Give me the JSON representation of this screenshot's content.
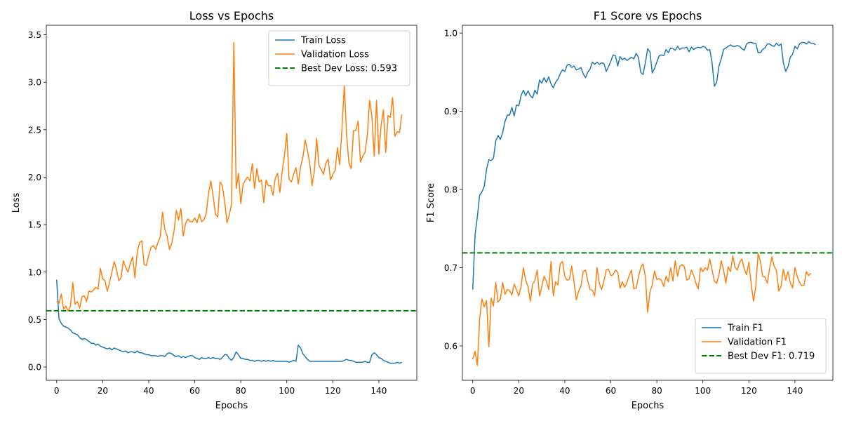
{
  "chart_data": [
    {
      "type": "line",
      "title": "Loss vs Epochs",
      "xlabel": "Epochs",
      "ylabel": "Loss",
      "xlim": [
        -4.5,
        156.5
      ],
      "ylim": [
        -0.14,
        3.6
      ],
      "xticks": [
        0,
        20,
        40,
        60,
        80,
        100,
        120,
        140
      ],
      "xtick_labels": [
        "0",
        "20",
        "40",
        "60",
        "80",
        "100",
        "120",
        "140"
      ],
      "yticks": [
        0.0,
        0.5,
        1.0,
        1.5,
        2.0,
        2.5,
        3.0,
        3.5
      ],
      "ytick_labels": [
        "0.0",
        "0.5",
        "1.0",
        "1.5",
        "2.0",
        "2.5",
        "3.0",
        "3.5"
      ],
      "legend_position": "top-right",
      "grid": false,
      "series": [
        {
          "name": "Train Loss",
          "color": "#1f77b4",
          "values": [
            0.92,
            0.51,
            0.46,
            0.43,
            0.42,
            0.41,
            0.39,
            0.36,
            0.35,
            0.34,
            0.31,
            0.29,
            0.3,
            0.29,
            0.27,
            0.25,
            0.25,
            0.23,
            0.24,
            0.22,
            0.21,
            0.2,
            0.19,
            0.2,
            0.18,
            0.2,
            0.19,
            0.18,
            0.17,
            0.16,
            0.17,
            0.15,
            0.16,
            0.16,
            0.15,
            0.17,
            0.15,
            0.15,
            0.14,
            0.13,
            0.13,
            0.12,
            0.12,
            0.12,
            0.11,
            0.12,
            0.12,
            0.11,
            0.14,
            0.15,
            0.14,
            0.12,
            0.11,
            0.12,
            0.1,
            0.11,
            0.1,
            0.11,
            0.12,
            0.12,
            0.1,
            0.09,
            0.08,
            0.1,
            0.09,
            0.09,
            0.1,
            0.09,
            0.1,
            0.09,
            0.09,
            0.08,
            0.1,
            0.13,
            0.13,
            0.09,
            0.07,
            0.1,
            0.16,
            0.13,
            0.09,
            0.09,
            0.08,
            0.08,
            0.07,
            0.07,
            0.06,
            0.07,
            0.07,
            0.06,
            0.07,
            0.06,
            0.07,
            0.06,
            0.07,
            0.06,
            0.06,
            0.06,
            0.06,
            0.06,
            0.06,
            0.05,
            0.06,
            0.07,
            0.06,
            0.23,
            0.2,
            0.14,
            0.11,
            0.08,
            0.06,
            0.06,
            0.06,
            0.06,
            0.06,
            0.06,
            0.06,
            0.06,
            0.06,
            0.06,
            0.06,
            0.06,
            0.06,
            0.06,
            0.06,
            0.07,
            0.08,
            0.07,
            0.07,
            0.06,
            0.05,
            0.05,
            0.05,
            0.05,
            0.06,
            0.05,
            0.05,
            0.13,
            0.15,
            0.13,
            0.1,
            0.09,
            0.07,
            0.06,
            0.05,
            0.04,
            0.04,
            0.04,
            0.05,
            0.04,
            0.05
          ]
        },
        {
          "name": "Validation Loss",
          "color": "#ff7f0e",
          "values": [
            0.69,
            0.67,
            0.77,
            0.61,
            0.64,
            0.59,
            0.64,
            0.89,
            0.66,
            0.69,
            0.62,
            0.74,
            0.75,
            0.69,
            0.8,
            0.79,
            0.81,
            0.84,
            0.82,
            1.04,
            0.93,
            0.91,
            0.8,
            0.89,
            1.0,
            1.11,
            1.03,
            0.91,
            0.94,
            1.12,
            1.05,
            1.0,
            1.09,
            1.16,
            0.94,
            1.21,
            1.31,
            1.33,
            1.08,
            1.07,
            1.18,
            1.26,
            1.28,
            1.24,
            1.31,
            1.37,
            1.63,
            1.45,
            1.38,
            1.24,
            1.3,
            1.43,
            1.65,
            1.55,
            1.67,
            1.38,
            1.51,
            1.56,
            1.53,
            1.53,
            1.57,
            1.52,
            1.61,
            1.53,
            1.55,
            1.62,
            1.83,
            1.96,
            1.8,
            1.61,
            1.58,
            1.95,
            1.91,
            1.74,
            1.52,
            1.6,
            1.72,
            3.42,
            1.88,
            2.04,
            1.72,
            1.92,
            1.97,
            2.0,
            1.96,
            2.14,
            1.88,
            2.09,
            1.95,
            1.97,
            1.73,
            1.97,
            1.91,
            1.91,
            1.81,
            1.99,
            2.04,
            1.84,
            2.06,
            2.23,
            2.46,
            1.98,
            1.95,
            2.03,
            2.1,
            1.93,
            2.11,
            2.21,
            2.39,
            2.28,
            2.14,
            1.91,
            2.07,
            2.41,
            2.12,
            2.08,
            2.03,
            2.15,
            2.19,
            1.97,
            2.03,
            2.07,
            2.31,
            2.13,
            2.52,
            2.97,
            2.44,
            2.15,
            2.09,
            2.49,
            2.49,
            2.59,
            2.16,
            2.22,
            2.26,
            2.44,
            2.81,
            2.64,
            2.22,
            2.81,
            2.24,
            2.55,
            2.71,
            2.26,
            2.65,
            2.63,
            2.84,
            2.43,
            2.48,
            2.47,
            2.66
          ]
        },
        {
          "name": "Best Dev Loss: 0.593",
          "color": "#008000",
          "dashed": true,
          "hline": 0.593
        }
      ]
    },
    {
      "type": "line",
      "title": "F1 Score vs Epochs",
      "xlabel": "Epochs",
      "ylabel": "F1 Score",
      "xlim": [
        -4.5,
        156.5
      ],
      "ylim": [
        0.556,
        1.01
      ],
      "xticks": [
        0,
        20,
        40,
        60,
        80,
        100,
        120,
        140
      ],
      "xtick_labels": [
        "0",
        "20",
        "40",
        "60",
        "80",
        "100",
        "120",
        "140"
      ],
      "yticks": [
        0.6,
        0.7,
        0.8,
        0.9,
        1.0
      ],
      "ytick_labels": [
        "0.6",
        "0.7",
        "0.8",
        "0.9",
        "1.0"
      ],
      "legend_position": "bottom-right",
      "grid": false,
      "series": [
        {
          "name": "Train F1",
          "color": "#1f77b4",
          "values": [
            0.672,
            0.742,
            0.765,
            0.793,
            0.797,
            0.804,
            0.826,
            0.838,
            0.837,
            0.84,
            0.862,
            0.869,
            0.864,
            0.873,
            0.887,
            0.895,
            0.895,
            0.905,
            0.894,
            0.908,
            0.907,
            0.92,
            0.927,
            0.92,
            0.926,
            0.92,
            0.917,
            0.927,
            0.922,
            0.94,
            0.936,
            0.943,
            0.937,
            0.944,
            0.935,
            0.93,
            0.937,
            0.941,
            0.948,
            0.953,
            0.951,
            0.959,
            0.96,
            0.956,
            0.958,
            0.953,
            0.954,
            0.956,
            0.948,
            0.943,
            0.95,
            0.954,
            0.963,
            0.96,
            0.963,
            0.96,
            0.962,
            0.961,
            0.951,
            0.957,
            0.964,
            0.972,
            0.971,
            0.958,
            0.97,
            0.966,
            0.968,
            0.965,
            0.967,
            0.969,
            0.967,
            0.974,
            0.969,
            0.95,
            0.947,
            0.962,
            0.98,
            0.976,
            0.949,
            0.955,
            0.963,
            0.971,
            0.972,
            0.971,
            0.979,
            0.975,
            0.981,
            0.98,
            0.978,
            0.983,
            0.979,
            0.981,
            0.981,
            0.982,
            0.976,
            0.982,
            0.979,
            0.981,
            0.982,
            0.981,
            0.983,
            0.982,
            0.978,
            0.979,
            0.962,
            0.932,
            0.937,
            0.958,
            0.967,
            0.979,
            0.981,
            0.983,
            0.985,
            0.983,
            0.983,
            0.984,
            0.983,
            0.98,
            0.978,
            0.986,
            0.988,
            0.988,
            0.987,
            0.987,
            0.975,
            0.975,
            0.979,
            0.981,
            0.986,
            0.986,
            0.984,
            0.983,
            0.987,
            0.984,
            0.986,
            0.962,
            0.951,
            0.957,
            0.969,
            0.973,
            0.983,
            0.98,
            0.986,
            0.988,
            0.988,
            0.986,
            0.989,
            0.987,
            0.987,
            0.985
          ]
        },
        {
          "name": "Validation F1",
          "color": "#ff7f0e",
          "values": [
            0.583,
            0.593,
            0.575,
            0.635,
            0.66,
            0.65,
            0.658,
            0.599,
            0.661,
            0.651,
            0.681,
            0.656,
            0.66,
            0.681,
            0.666,
            0.672,
            0.671,
            0.665,
            0.679,
            0.672,
            0.664,
            0.676,
            0.7,
            0.684,
            0.676,
            0.657,
            0.679,
            0.684,
            0.697,
            0.664,
            0.676,
            0.689,
            0.683,
            0.672,
            0.708,
            0.664,
            0.682,
            0.678,
            0.705,
            0.708,
            0.689,
            0.684,
            0.685,
            0.702,
            0.682,
            0.659,
            0.67,
            0.676,
            0.695,
            0.697,
            0.683,
            0.672,
            0.671,
            0.664,
            0.7,
            0.68,
            0.672,
            0.683,
            0.697,
            0.698,
            0.69,
            0.691,
            0.697,
            0.694,
            0.674,
            0.682,
            0.675,
            0.681,
            0.69,
            0.697,
            0.673,
            0.674,
            0.688,
            0.7,
            0.705,
            0.689,
            0.643,
            0.669,
            0.678,
            0.696,
            0.685,
            0.686,
            0.684,
            0.676,
            0.689,
            0.682,
            0.7,
            0.683,
            0.709,
            0.689,
            0.702,
            0.704,
            0.701,
            0.684,
            0.686,
            0.697,
            0.69,
            0.68,
            0.673,
            0.7,
            0.695,
            0.7,
            0.697,
            0.711,
            0.697,
            0.683,
            0.68,
            0.691,
            0.709,
            0.697,
            0.68,
            0.701,
            0.695,
            0.715,
            0.7,
            0.697,
            0.707,
            0.711,
            0.698,
            0.691,
            0.707,
            0.679,
            0.657,
            0.676,
            0.718,
            0.708,
            0.689,
            0.688,
            0.68,
            0.699,
            0.714,
            0.702,
            0.696,
            0.67,
            0.676,
            0.698,
            0.684,
            0.695,
            0.681,
            0.674,
            0.7,
            0.689,
            0.681,
            0.677,
            0.678,
            0.695,
            0.69,
            0.693
          ]
        },
        {
          "name": "Best Dev F1: 0.719",
          "color": "#008000",
          "dashed": true,
          "hline": 0.719
        }
      ]
    }
  ]
}
